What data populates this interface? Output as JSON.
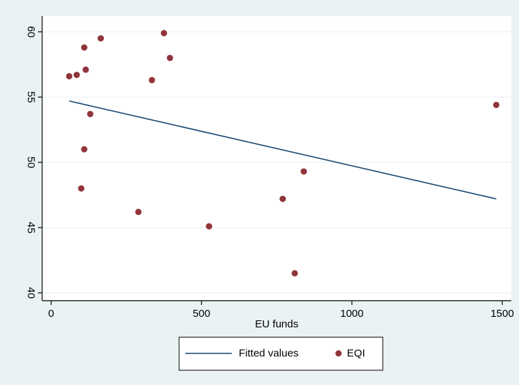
{
  "chart_data": {
    "type": "scatter",
    "title": "",
    "xlabel": "EU funds",
    "ylabel": "",
    "xlim": [
      -30,
      1530
    ],
    "ylim": [
      39.4,
      61.2
    ],
    "x_ticks": [
      {
        "value": 0,
        "label": "0"
      },
      {
        "value": 500,
        "label": "500"
      },
      {
        "value": 1000,
        "label": "1000"
      },
      {
        "value": 1500,
        "label": "1500"
      }
    ],
    "y_ticks": [
      {
        "value": 40,
        "label": "40"
      },
      {
        "value": 45,
        "label": "45"
      },
      {
        "value": 50,
        "label": "50"
      },
      {
        "value": 55,
        "label": "55"
      },
      {
        "value": 60,
        "label": "60"
      }
    ],
    "grid": true,
    "legend_position": "bottom",
    "series": [
      {
        "name": "Fitted values",
        "kind": "line",
        "color": "#1a476f",
        "points": [
          {
            "x": 60,
            "y": 54.7
          },
          {
            "x": 1480,
            "y": 47.2
          }
        ]
      },
      {
        "name": "EQI",
        "kind": "scatter",
        "color": "#90353b",
        "points": [
          {
            "x": 60,
            "y": 56.6
          },
          {
            "x": 85,
            "y": 56.7
          },
          {
            "x": 100,
            "y": 48.0
          },
          {
            "x": 110,
            "y": 58.8
          },
          {
            "x": 110,
            "y": 51.0
          },
          {
            "x": 115,
            "y": 57.1
          },
          {
            "x": 130,
            "y": 53.7
          },
          {
            "x": 165,
            "y": 59.5
          },
          {
            "x": 290,
            "y": 46.2
          },
          {
            "x": 335,
            "y": 56.3
          },
          {
            "x": 375,
            "y": 59.9
          },
          {
            "x": 395,
            "y": 58.0
          },
          {
            "x": 525,
            "y": 45.1
          },
          {
            "x": 770,
            "y": 47.2
          },
          {
            "x": 810,
            "y": 41.5
          },
          {
            "x": 840,
            "y": 49.3
          },
          {
            "x": 1480,
            "y": 54.4
          }
        ]
      }
    ]
  }
}
